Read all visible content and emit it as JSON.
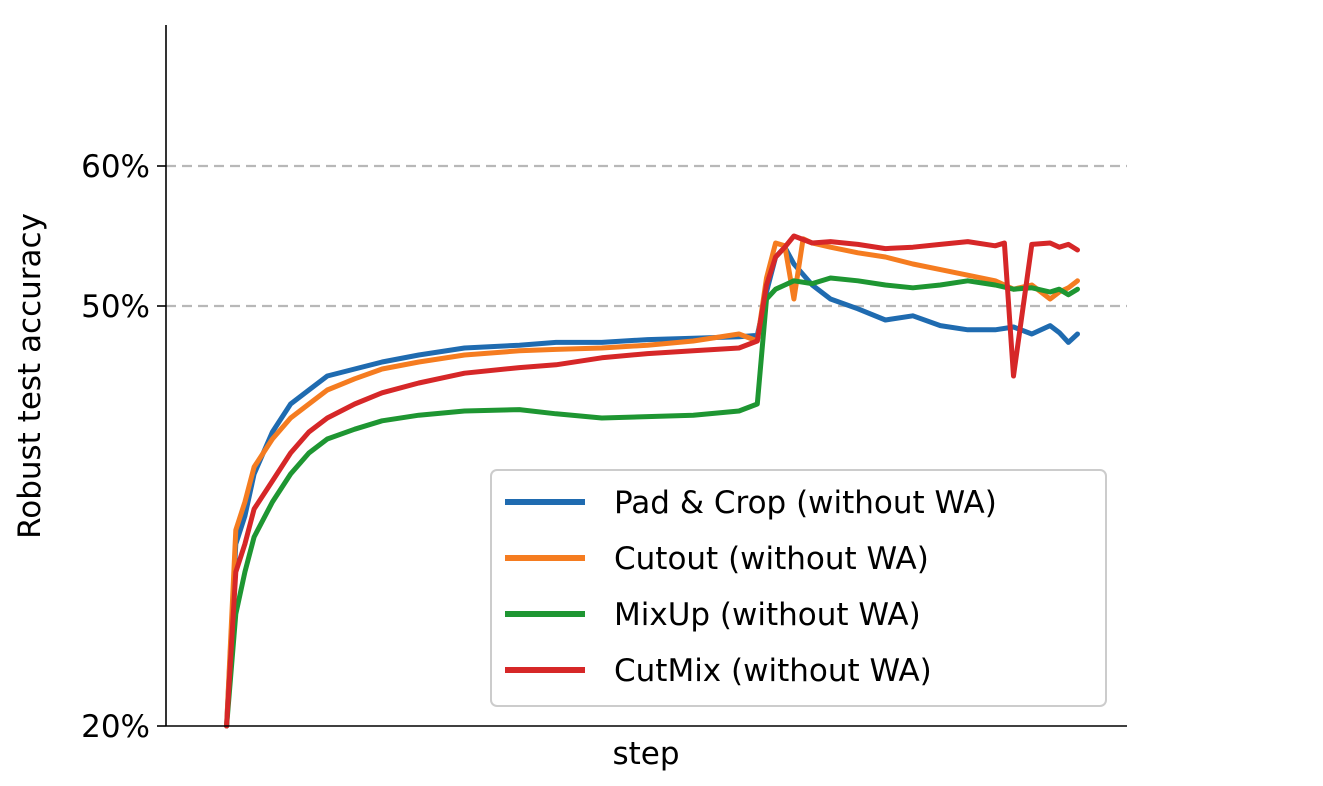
{
  "chart_data": {
    "type": "line",
    "xlabel": "step",
    "ylabel": "Robust test accuracy",
    "y_axis_scale": "nonlinear (20% at bottom, 10% spacing between 50% and 60%)",
    "y_ticks": [
      {
        "value": 20,
        "label": "20%"
      },
      {
        "value": 50,
        "label": "50%"
      },
      {
        "value": 60,
        "label": "60%"
      }
    ],
    "ylim": [
      20,
      64
    ],
    "xlim": [
      0,
      100
    ],
    "grid": {
      "horizontal_dashed_at": [
        50,
        60
      ],
      "color": "#b8b8b8"
    },
    "legend": {
      "position": "bottom-right"
    },
    "series": [
      {
        "name": "Pad & Crop (without WA)",
        "color": "#1f6bb0",
        "x": [
          4,
          5,
          6,
          7,
          9,
          11,
          13,
          15,
          18,
          21,
          25,
          30,
          36,
          40,
          45,
          50,
          55,
          60,
          62,
          63,
          64,
          65,
          66,
          68,
          70,
          73,
          76,
          79,
          82,
          85,
          88,
          90,
          92,
          94,
          95,
          96,
          97
        ],
        "y": [
          20,
          33,
          35,
          38,
          41,
          43,
          44,
          45,
          45.5,
          46,
          46.5,
          47,
          47.2,
          47.4,
          47.4,
          47.6,
          47.7,
          47.8,
          47.9,
          51,
          53.5,
          54.2,
          53,
          51.5,
          50.5,
          49.8,
          49,
          49.3,
          48.6,
          48.3,
          48.3,
          48.5,
          48,
          48.6,
          48.1,
          47.4,
          48
        ]
      },
      {
        "name": "Cutout (without WA)",
        "color": "#f57c20",
        "x": [
          4,
          5,
          6,
          7,
          9,
          11,
          13,
          15,
          18,
          21,
          25,
          30,
          36,
          40,
          45,
          50,
          55,
          60,
          62,
          63,
          64,
          65,
          66,
          67,
          68,
          70,
          73,
          76,
          79,
          82,
          85,
          88,
          90,
          92,
          94,
          95,
          96,
          97
        ],
        "y": [
          20,
          34,
          36,
          38.5,
          40.5,
          42,
          43,
          44,
          44.8,
          45.5,
          46,
          46.5,
          46.8,
          46.9,
          47,
          47.2,
          47.5,
          48,
          47.5,
          52,
          54.5,
          54.3,
          50.5,
          54.8,
          54.5,
          54.2,
          53.8,
          53.5,
          53,
          52.6,
          52.2,
          51.8,
          51.2,
          51.5,
          50.5,
          51,
          51.3,
          51.8
        ]
      },
      {
        "name": "MixUp (without WA)",
        "color": "#1e9632",
        "x": [
          4,
          5,
          6,
          7,
          9,
          11,
          13,
          15,
          18,
          21,
          25,
          30,
          36,
          40,
          45,
          50,
          55,
          60,
          62,
          63,
          64,
          65,
          66,
          68,
          70,
          73,
          76,
          79,
          82,
          85,
          88,
          90,
          92,
          94,
          95,
          96,
          97
        ],
        "y": [
          20,
          28,
          31,
          33.5,
          36,
          38,
          39.5,
          40.5,
          41.2,
          41.8,
          42.2,
          42.5,
          42.6,
          42.3,
          42,
          42.1,
          42.2,
          42.5,
          43,
          50.5,
          51.2,
          51.5,
          51.8,
          51.6,
          52,
          51.8,
          51.5,
          51.3,
          51.5,
          51.8,
          51.5,
          51.2,
          51.3,
          51,
          51.2,
          50.8,
          51.2
        ]
      },
      {
        "name": "CutMix (without WA)",
        "color": "#d62728",
        "x": [
          4,
          5,
          6,
          7,
          9,
          11,
          13,
          15,
          18,
          21,
          25,
          30,
          36,
          40,
          45,
          50,
          55,
          60,
          62,
          63,
          64,
          65,
          66,
          68,
          70,
          73,
          76,
          79,
          82,
          85,
          88,
          89,
          90,
          92,
          94,
          95,
          96,
          97
        ],
        "y": [
          20,
          31,
          33,
          35.5,
          37.5,
          39.5,
          41,
          42,
          43,
          43.8,
          44.5,
          45.2,
          45.6,
          45.8,
          46.3,
          46.6,
          46.8,
          47,
          47.5,
          51.5,
          53.5,
          54.2,
          55,
          54.5,
          54.6,
          54.4,
          54.1,
          54.2,
          54.4,
          54.6,
          54.3,
          54.5,
          45,
          54.4,
          54.5,
          54.2,
          54.4,
          54
        ]
      }
    ]
  }
}
